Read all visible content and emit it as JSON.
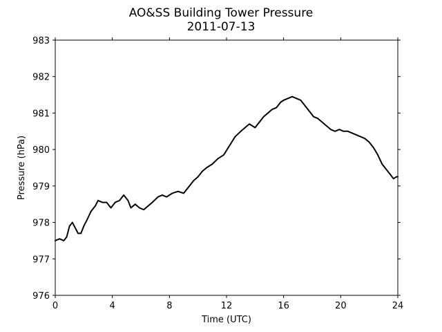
{
  "chart_data": {
    "type": "line",
    "title": "AO&SS Building Tower Pressure",
    "subtitle": "2011-07-13",
    "xlabel": "Time (UTC)",
    "ylabel": "Pressure (hPa)",
    "xlim": [
      0,
      24
    ],
    "ylim": [
      976,
      983
    ],
    "xticks": [
      0,
      4,
      8,
      12,
      16,
      20,
      24
    ],
    "yticks": [
      976,
      977,
      978,
      979,
      980,
      981,
      982,
      983
    ],
    "grid": false,
    "line_color": "#000000",
    "series": [
      {
        "x": [
          0,
          0.3,
          0.6,
          0.8,
          1.0,
          1.2,
          1.4,
          1.6,
          1.8,
          2.0,
          2.2,
          2.5,
          2.8,
          3.0,
          3.3,
          3.6,
          3.9,
          4.2,
          4.5,
          4.8,
          5.1,
          5.3,
          5.6,
          5.9,
          6.2,
          6.5,
          6.8,
          7.2,
          7.5,
          7.8,
          8.2,
          8.6,
          9.0,
          9.4,
          9.7,
          10.0,
          10.3,
          10.6,
          11.0,
          11.4,
          11.8,
          12.2,
          12.6,
          13.0,
          13.3,
          13.6,
          14.0,
          14.3,
          14.6,
          14.9,
          15.2,
          15.5,
          15.8,
          16.0,
          16.3,
          16.6,
          16.9,
          17.2,
          17.5,
          17.8,
          18.1,
          18.4,
          18.7,
          19.0,
          19.3,
          19.6,
          19.9,
          20.2,
          20.5,
          20.8,
          21.1,
          21.4,
          21.7,
          22.0,
          22.3,
          22.6,
          22.9,
          23.2,
          23.5,
          23.7,
          23.9,
          24.0
        ],
        "y": [
          977.5,
          977.55,
          977.5,
          977.6,
          977.9,
          978.0,
          977.85,
          977.7,
          977.7,
          977.9,
          978.05,
          978.3,
          978.45,
          978.6,
          978.55,
          978.55,
          978.4,
          978.55,
          978.6,
          978.75,
          978.6,
          978.4,
          978.5,
          978.4,
          978.35,
          978.45,
          978.55,
          978.7,
          978.75,
          978.7,
          978.8,
          978.85,
          978.8,
          979.0,
          979.15,
          979.25,
          979.4,
          979.5,
          979.6,
          979.75,
          979.85,
          980.1,
          980.35,
          980.5,
          980.6,
          980.7,
          980.6,
          980.75,
          980.9,
          981.0,
          981.1,
          981.15,
          981.3,
          981.35,
          981.4,
          981.45,
          981.4,
          981.35,
          981.2,
          981.05,
          980.9,
          980.85,
          980.75,
          980.65,
          980.55,
          980.5,
          980.55,
          980.5,
          980.5,
          980.45,
          980.4,
          980.35,
          980.3,
          980.2,
          980.05,
          979.85,
          979.6,
          979.45,
          979.3,
          979.2,
          979.25,
          979.25
        ]
      }
    ]
  }
}
